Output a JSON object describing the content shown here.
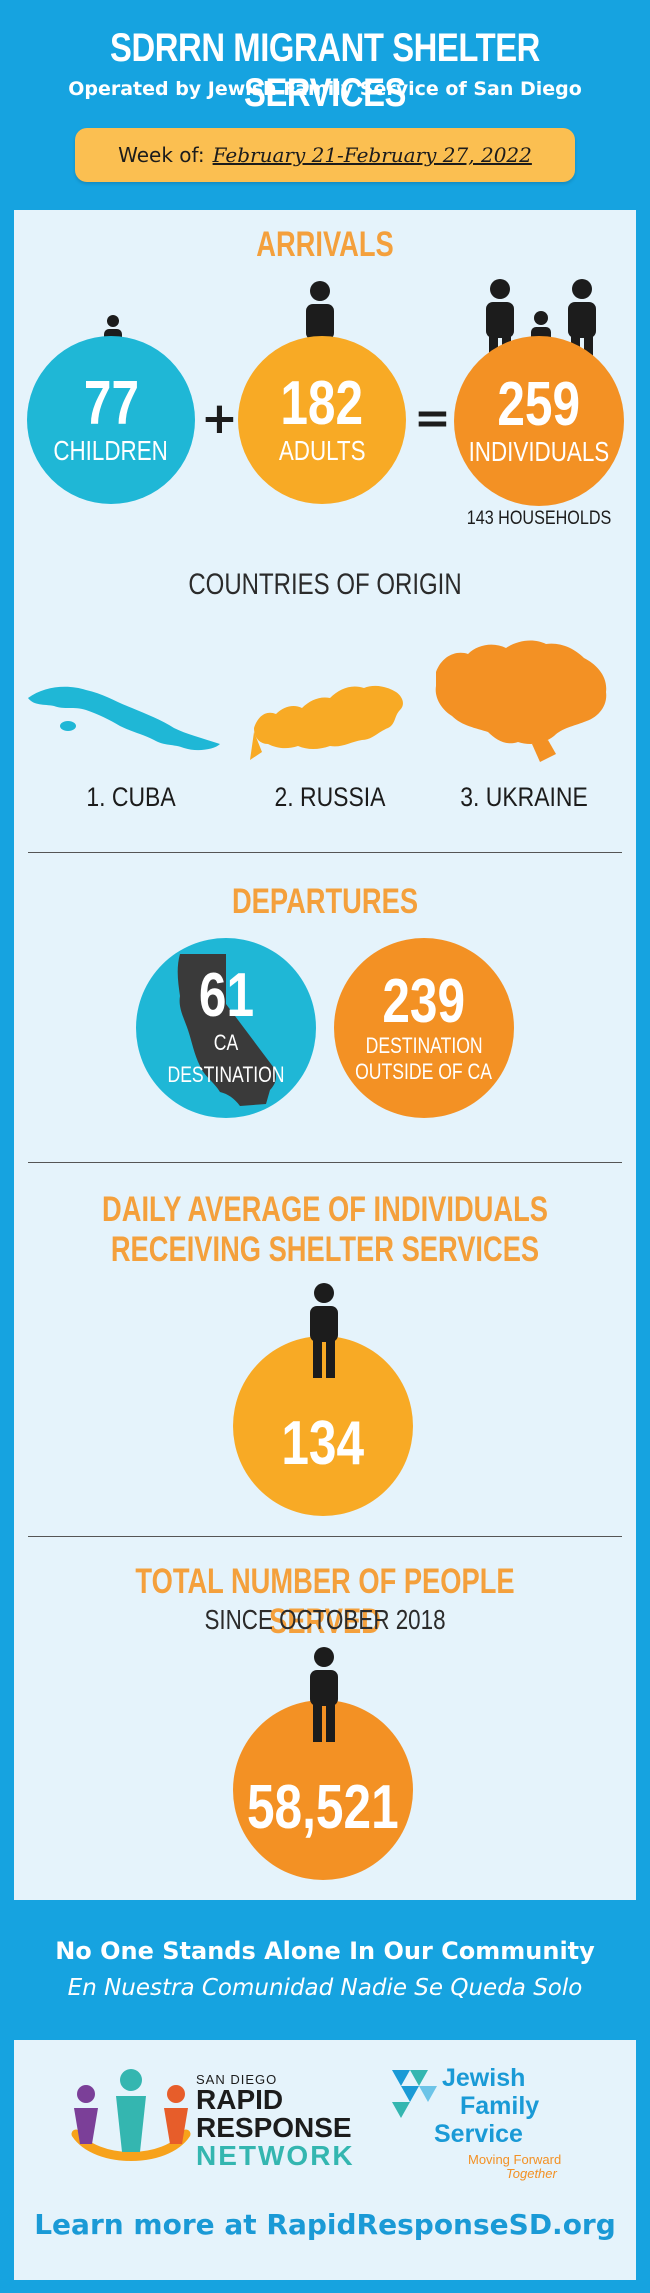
{
  "header": {
    "title": "SDRRN MIGRANT SHELTER SERVICES",
    "subtitle": "Operated by Jewish Family Service of San Diego",
    "week_label": "Week of:",
    "week_dates": "February 21-February 27, 2022"
  },
  "arrivals": {
    "title": "ARRIVALS",
    "children": {
      "value": "77",
      "label": "CHILDREN"
    },
    "adults": {
      "value": "182",
      "label": "ADULTS"
    },
    "individuals": {
      "value": "259",
      "label": "INDIVIDUALS"
    },
    "plus": "+",
    "equals": "=",
    "households": "143 HOUSEHOLDS"
  },
  "countries": {
    "title": "COUNTRIES OF ORIGIN",
    "items": [
      "1. CUBA",
      "2. RUSSIA",
      "3. UKRAINE"
    ]
  },
  "departures": {
    "title": "DEPARTURES",
    "ca": {
      "value": "61",
      "label": "CA DESTINATION"
    },
    "outside": {
      "value": "239",
      "label_line1": "DESTINATION",
      "label_line2": "OUTSIDE OF CA"
    }
  },
  "daily": {
    "title_line1": "DAILY AVERAGE OF INDIVIDUALS",
    "title_line2": "RECEIVING SHELTER SERVICES",
    "value": "134"
  },
  "total": {
    "title": "TOTAL NUMBER OF PEOPLE SERVED",
    "subtitle": "SINCE OCTOBER 2018",
    "value": "58,521"
  },
  "footer": {
    "line1": "No One Stands Alone In Our Community",
    "line2": "En Nuestra Comunidad Nadie Se Queda Solo",
    "rrn_small": "SAN DIEGO",
    "rrn_line1": "RAPID",
    "rrn_line2": "RESPONSE",
    "rrn_line3": "NETWORK",
    "jfs_line1": "Jewish",
    "jfs_line2": "Family",
    "jfs_line3": "Service",
    "jfs_tag1": "Moving Forward",
    "jfs_tag2": "Together",
    "learn_more": "Learn more at RapidResponseSD.org"
  },
  "colors": {
    "blue_bg": "#16a3e0",
    "panel": "#e5f3fb",
    "cyan": "#1fb7d6",
    "amber": "#f8aa25",
    "orange": "#f39124",
    "title_orange": "#f4a03c"
  }
}
